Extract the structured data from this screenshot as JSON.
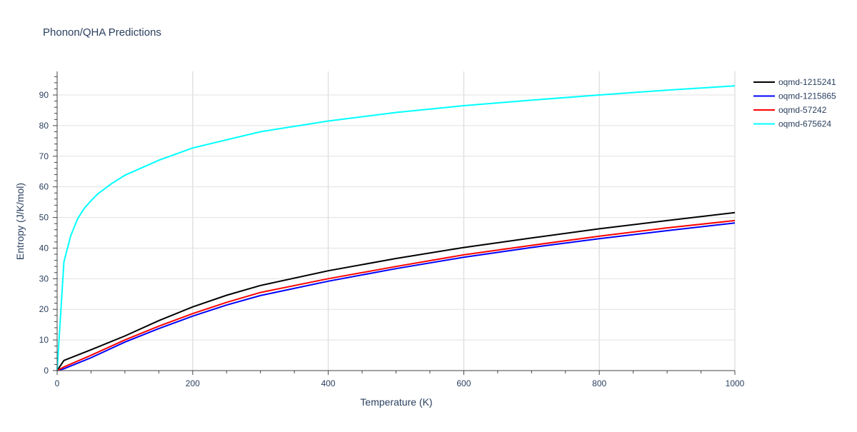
{
  "chart_data": {
    "type": "line",
    "title": "Phonon/QHA Predictions",
    "xlabel": "Temperature (K)",
    "ylabel": "Entropy (J/K/mol)",
    "xlim": [
      0,
      1000
    ],
    "ylim": [
      0,
      97.7
    ],
    "xticks": [
      0,
      200,
      400,
      600,
      800,
      1000
    ],
    "yticks": [
      0,
      10,
      20,
      30,
      40,
      50,
      60,
      70,
      80,
      90
    ],
    "grid": true,
    "legend": "right",
    "series": [
      {
        "name": "oqmd-1215241",
        "color": "#000000",
        "x": [
          0,
          10,
          50,
          100,
          150,
          200,
          250,
          300,
          400,
          500,
          600,
          700,
          800,
          900,
          1000
        ],
        "y": [
          0,
          3.3,
          6.8,
          11.3,
          16.3,
          20.8,
          24.6,
          27.8,
          32.6,
          36.6,
          40.2,
          43.3,
          46.3,
          49,
          51.6
        ]
      },
      {
        "name": "oqmd-1215865",
        "color": "#0000ff",
        "x": [
          0,
          10,
          50,
          100,
          150,
          200,
          250,
          300,
          400,
          500,
          600,
          700,
          800,
          900,
          1000
        ],
        "y": [
          0,
          0.6,
          4.2,
          9.3,
          13.7,
          17.8,
          21.4,
          24.5,
          29.2,
          33.3,
          37,
          40.2,
          43.1,
          45.7,
          48.2
        ]
      },
      {
        "name": "oqmd-57242",
        "color": "#ff0000",
        "x": [
          0,
          10,
          50,
          100,
          150,
          200,
          250,
          300,
          400,
          500,
          600,
          700,
          800,
          900,
          1000
        ],
        "y": [
          0,
          1.2,
          5,
          10,
          14.5,
          18.6,
          22.3,
          25.5,
          30,
          34,
          37.8,
          40.9,
          43.9,
          46.6,
          49
        ]
      },
      {
        "name": "oqmd-675624",
        "color": "#00ffff",
        "x": [
          0,
          10,
          20,
          30,
          40,
          50,
          60,
          80,
          100,
          150,
          200,
          300,
          400,
          500,
          600,
          700,
          800,
          900,
          1000
        ],
        "y": [
          0,
          35.5,
          44,
          49.5,
          53,
          55.5,
          57.7,
          61,
          63.8,
          68.7,
          72.7,
          78,
          81.5,
          84.3,
          86.5,
          88.3,
          90,
          91.6,
          93
        ]
      }
    ]
  }
}
